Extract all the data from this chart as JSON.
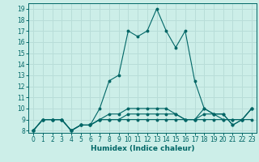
{
  "xlabel": "Humidex (Indice chaleur)",
  "background_color": "#cceee8",
  "grid_color": "#b8ddd8",
  "line_color": "#006666",
  "xlim": [
    -0.5,
    23.5
  ],
  "ylim": [
    7.8,
    19.5
  ],
  "xticks": [
    0,
    1,
    2,
    3,
    4,
    5,
    6,
    7,
    8,
    9,
    10,
    11,
    12,
    13,
    14,
    15,
    16,
    17,
    18,
    19,
    20,
    21,
    22,
    23
  ],
  "yticks": [
    8,
    9,
    10,
    11,
    12,
    13,
    14,
    15,
    16,
    17,
    18,
    19
  ],
  "series": [
    [
      8,
      9,
      9,
      9,
      8,
      8.5,
      8.5,
      10,
      12.5,
      13,
      17,
      16.5,
      17,
      19,
      17,
      15.5,
      17,
      12.5,
      10,
      9.5,
      9,
      9,
      9,
      10
    ],
    [
      8,
      9,
      9,
      9,
      8,
      8.5,
      8.5,
      9,
      9,
      9,
      9,
      9,
      9,
      9,
      9,
      9,
      9,
      9,
      9,
      9,
      9,
      9,
      9,
      9
    ],
    [
      8,
      9,
      9,
      9,
      8,
      8.5,
      8.5,
      9,
      9,
      9,
      9.5,
      9.5,
      9.5,
      9.5,
      9.5,
      9.5,
      9,
      9,
      9.5,
      9.5,
      9.5,
      8.5,
      9,
      10
    ],
    [
      8,
      9,
      9,
      9,
      8,
      8.5,
      8.5,
      9,
      9.5,
      9.5,
      10,
      10,
      10,
      10,
      10,
      9.5,
      9,
      9,
      10,
      9.5,
      9.5,
      8.5,
      9,
      10
    ]
  ]
}
